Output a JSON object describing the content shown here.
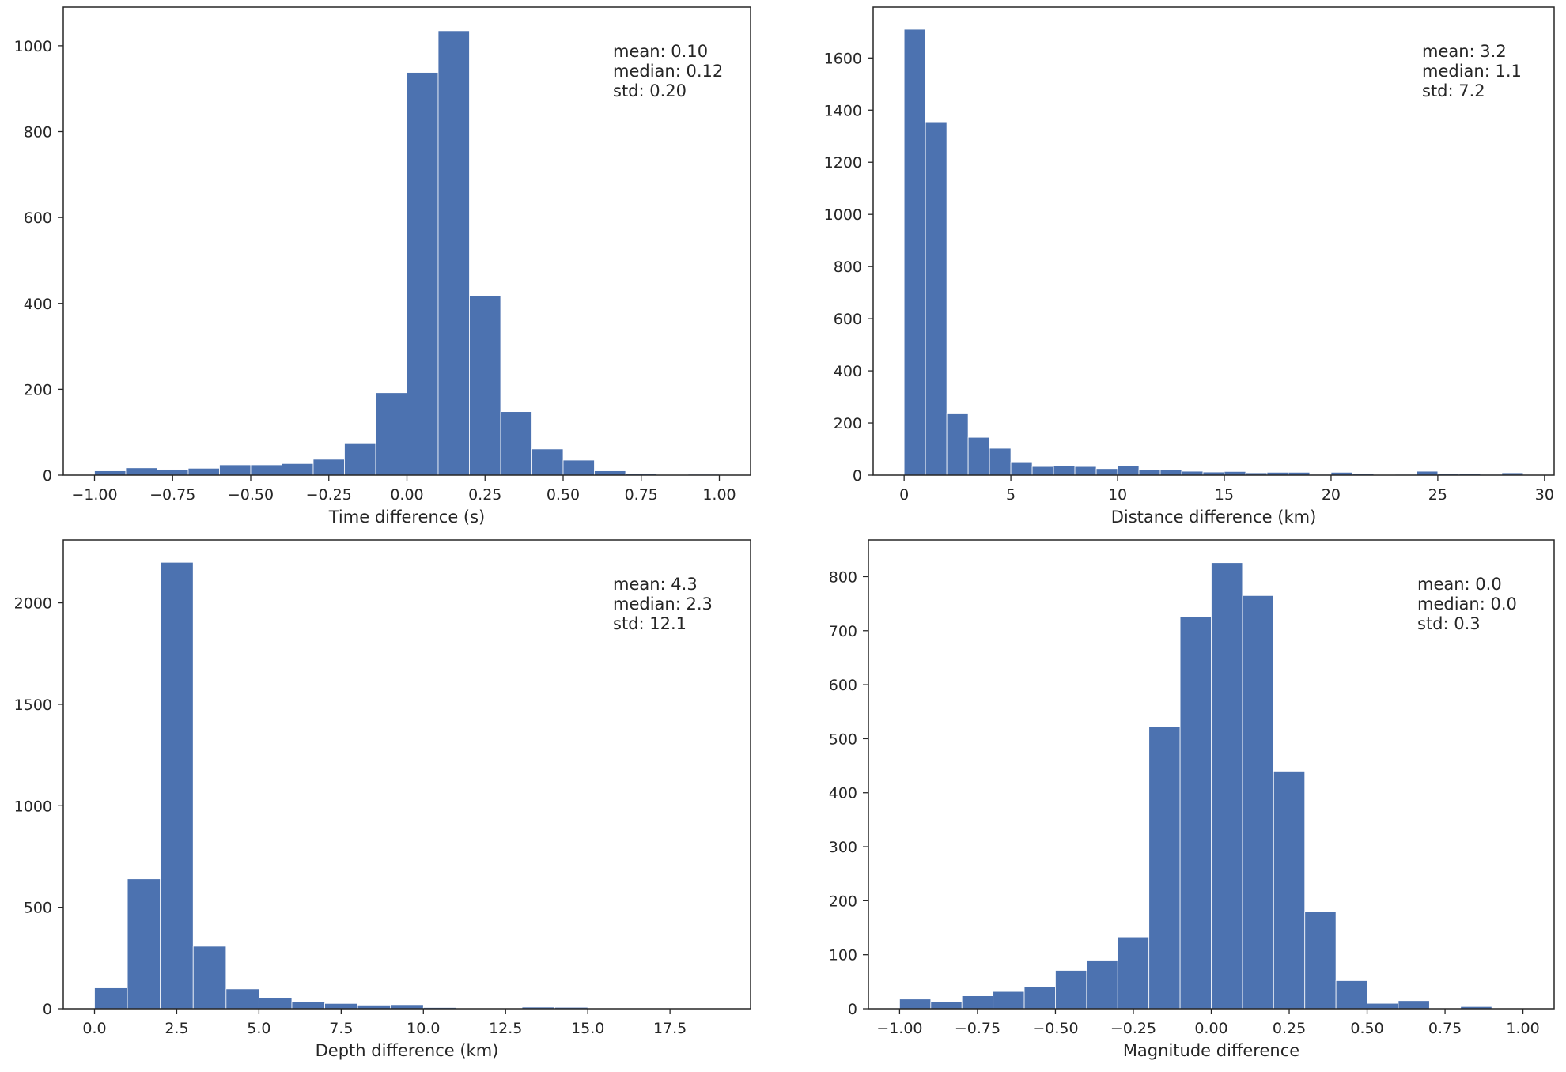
{
  "chart_data": [
    {
      "type": "bar",
      "subtype": "histogram",
      "xlabel": "Time difference (s)",
      "ylabel": "",
      "xlim": [
        -1.1,
        1.1
      ],
      "ylim": [
        0,
        1090
      ],
      "xticks": [
        -1.0,
        -0.75,
        -0.5,
        -0.25,
        0.0,
        0.25,
        0.5,
        0.75,
        1.0
      ],
      "xtick_labels": [
        "−1.00",
        "−0.75",
        "−0.50",
        "−0.25",
        "0.00",
        "0.25",
        "0.50",
        "0.75",
        "1.00"
      ],
      "yticks": [
        0,
        200,
        400,
        600,
        800,
        1000
      ],
      "ytick_labels": [
        "0",
        "200",
        "400",
        "600",
        "800",
        "1000"
      ],
      "bin_start": -1.0,
      "bin_width": 0.1,
      "values": [
        10,
        17,
        13,
        16,
        24,
        24,
        27,
        37,
        75,
        192,
        938,
        1035,
        417,
        148,
        61,
        35,
        10,
        4,
        0,
        2
      ],
      "annotation": {
        "mean": "mean: 0.10",
        "median": "median: 0.12",
        "std": "std: 0.20"
      },
      "bar_color": "#4c72b0",
      "grid": false
    },
    {
      "type": "bar",
      "subtype": "histogram",
      "xlabel": "Distance difference (km)",
      "ylabel": "",
      "xlim": [
        -1.45,
        30.45
      ],
      "ylim": [
        0,
        1795
      ],
      "xticks": [
        0,
        5,
        10,
        15,
        20,
        25,
        30
      ],
      "xtick_labels": [
        "0",
        "5",
        "10",
        "15",
        "20",
        "25",
        "30"
      ],
      "yticks": [
        0,
        200,
        400,
        600,
        800,
        1000,
        1200,
        1400,
        1600
      ],
      "ytick_labels": [
        "0",
        "200",
        "400",
        "600",
        "800",
        "1000",
        "1200",
        "1400",
        "1600"
      ],
      "bin_start": 0,
      "bin_width": 1.0,
      "values": [
        1710,
        1355,
        235,
        145,
        103,
        48,
        33,
        37,
        33,
        25,
        35,
        22,
        20,
        15,
        12,
        14,
        9,
        11,
        11,
        3,
        11,
        5,
        2,
        3,
        15,
        7,
        7,
        3,
        9
      ],
      "annotation": {
        "mean": "mean: 3.2",
        "median": "median: 1.1",
        "std": "std: 7.2"
      },
      "bar_color": "#4c72b0",
      "grid": false
    },
    {
      "type": "bar",
      "subtype": "histogram",
      "xlabel": "Depth difference (km)",
      "ylabel": "",
      "xlim": [
        -0.95,
        19.95
      ],
      "ylim": [
        0,
        2310
      ],
      "xticks": [
        0,
        2.5,
        5,
        7.5,
        10,
        12.5,
        15,
        17.5
      ],
      "xtick_labels": [
        "0.0",
        "2.5",
        "5.0",
        "7.5",
        "10.0",
        "12.5",
        "15.0",
        "17.5"
      ],
      "yticks": [
        0,
        500,
        1000,
        1500,
        2000
      ],
      "ytick_labels": [
        "0",
        "500",
        "1000",
        "1500",
        "2000"
      ],
      "bin_start": 0,
      "bin_width": 1.0,
      "values": [
        103,
        640,
        2200,
        308,
        98,
        55,
        36,
        26,
        18,
        20,
        6,
        2,
        3,
        8,
        7,
        3,
        2,
        1,
        1
      ],
      "annotation": {
        "mean": "mean: 4.3",
        "median": "median: 2.3",
        "std": "std: 12.1"
      },
      "bar_color": "#4c72b0",
      "grid": false
    },
    {
      "type": "bar",
      "subtype": "histogram",
      "xlabel": "Magnitude difference",
      "ylabel": "",
      "xlim": [
        -1.1,
        1.1
      ],
      "ylim": [
        0,
        868
      ],
      "xticks": [
        -1.0,
        -0.75,
        -0.5,
        -0.25,
        0.0,
        0.25,
        0.5,
        0.75,
        1.0
      ],
      "xtick_labels": [
        "−1.00",
        "−0.75",
        "−0.50",
        "−0.25",
        "0.00",
        "0.25",
        "0.50",
        "0.75",
        "1.00"
      ],
      "yticks": [
        0,
        100,
        200,
        300,
        400,
        500,
        600,
        700,
        800
      ],
      "ytick_labels": [
        "0",
        "100",
        "200",
        "300",
        "400",
        "500",
        "600",
        "700",
        "800"
      ],
      "bin_start": -1.0,
      "bin_width": 0.1,
      "values": [
        18,
        13,
        24,
        32,
        41,
        71,
        90,
        133,
        522,
        726,
        826,
        765,
        440,
        180,
        52,
        10,
        15,
        1,
        4,
        0
      ],
      "annotation": {
        "mean": "mean: 0.0",
        "median": "median: 0.0",
        "std": "std: 0.3"
      },
      "bar_color": "#4c72b0",
      "grid": false
    }
  ]
}
